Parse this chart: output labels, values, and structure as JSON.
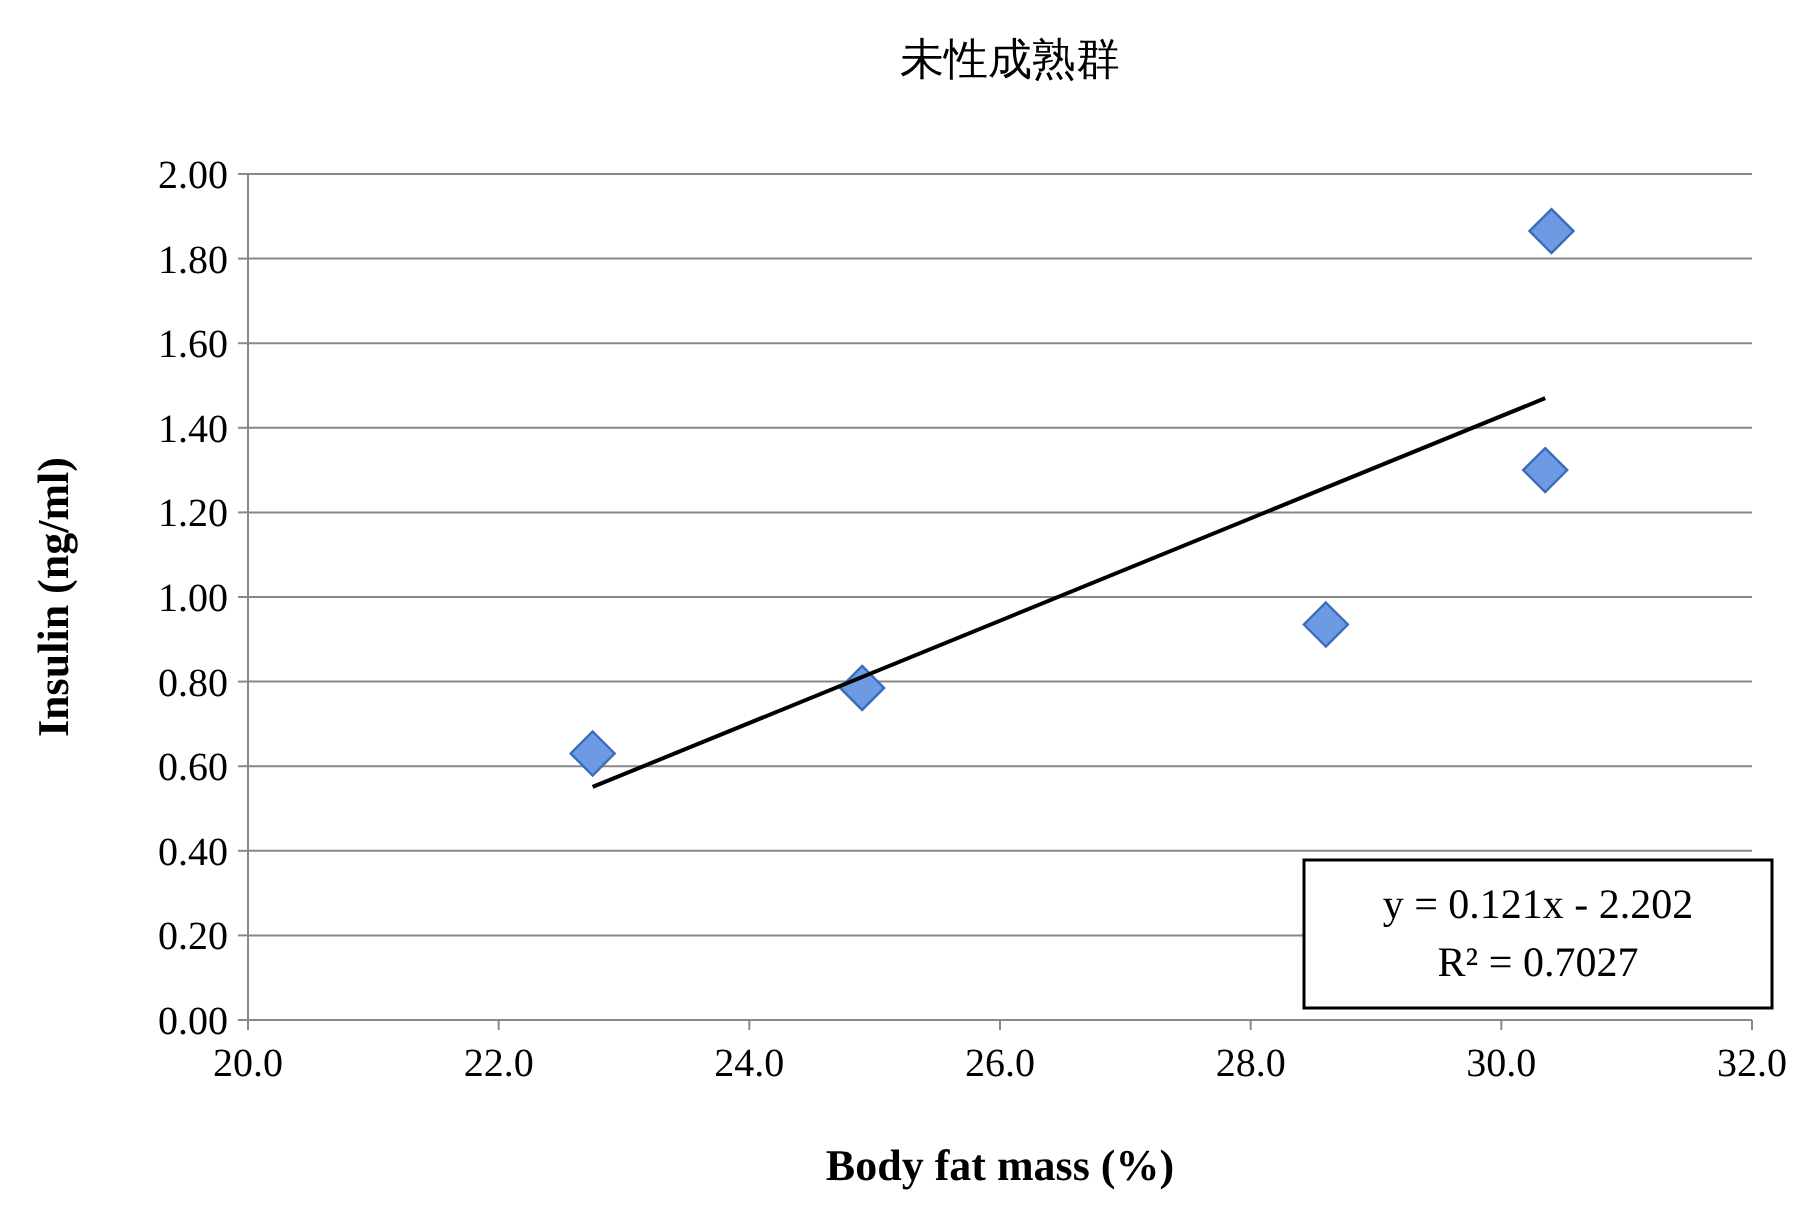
{
  "chart_data": {
    "type": "scatter",
    "title": "未性成熟群",
    "xlabel": "Body fat mass (%)",
    "ylabel": "Insulin (ng/ml)",
    "xlim": [
      20,
      32
    ],
    "ylim": [
      0,
      2
    ],
    "xticks": [
      {
        "value": 20,
        "label": "20.0"
      },
      {
        "value": 22,
        "label": "22.0"
      },
      {
        "value": 24,
        "label": "24.0"
      },
      {
        "value": 26,
        "label": "26.0"
      },
      {
        "value": 28,
        "label": "28.0"
      },
      {
        "value": 30,
        "label": "30.0"
      },
      {
        "value": 32,
        "label": "32.0"
      }
    ],
    "yticks": [
      {
        "value": 0,
        "label": "0.00"
      },
      {
        "value": 0.2,
        "label": "0.20"
      },
      {
        "value": 0.4,
        "label": "0.40"
      },
      {
        "value": 0.6,
        "label": "0.60"
      },
      {
        "value": 0.8,
        "label": "0.80"
      },
      {
        "value": 1.0,
        "label": "1.00"
      },
      {
        "value": 1.2,
        "label": "1.20"
      },
      {
        "value": 1.4,
        "label": "1.40"
      },
      {
        "value": 1.6,
        "label": "1.60"
      },
      {
        "value": 1.8,
        "label": "1.80"
      },
      {
        "value": 2.0,
        "label": "2.00"
      }
    ],
    "grid": "y",
    "series": [
      {
        "marker": "diamond",
        "color": "#6c9be3",
        "x": [
          22.75,
          24.9,
          28.6,
          30.35,
          30.4
        ],
        "values": [
          0.63,
          0.785,
          0.935,
          1.3,
          1.865
        ]
      },
      {
        "type": "line",
        "marker": "none",
        "color": "#000000",
        "x": [
          22.75,
          30.35
        ],
        "values": [
          0.551,
          1.47
        ]
      }
    ],
    "annotations": [
      "y = 0.121x - 2.202",
      "R² = 0.7027"
    ]
  }
}
